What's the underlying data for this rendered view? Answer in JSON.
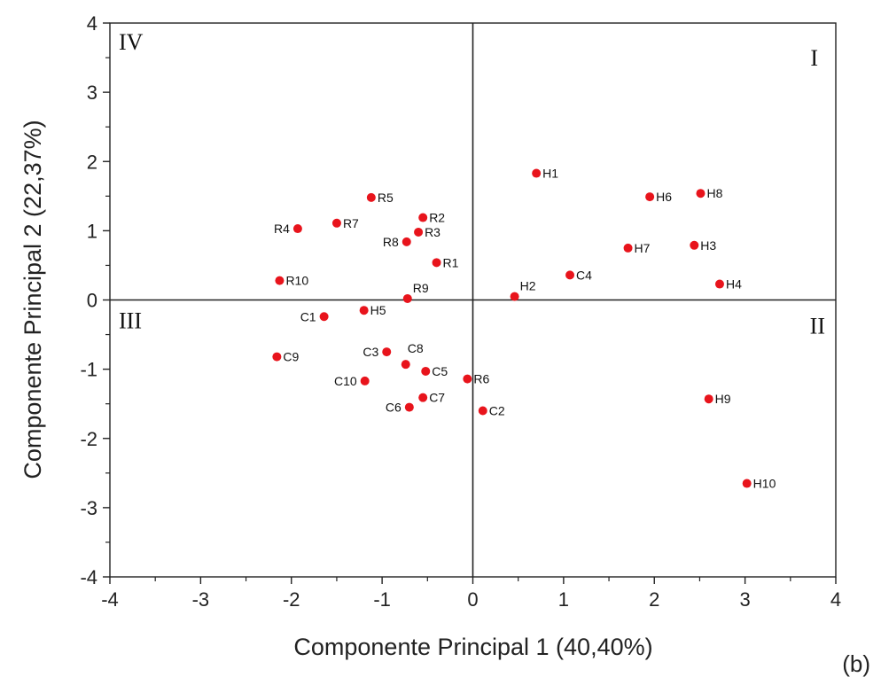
{
  "panel_tag": "(b)",
  "chart_data": {
    "type": "scatter",
    "xlabel": "Componente Principal 1 (40,40%)",
    "ylabel": "Componente Principal 2 (22,37%)",
    "xlim": [
      -4,
      4
    ],
    "ylim": [
      -4,
      4
    ],
    "xticks": [
      -4,
      -3,
      -2,
      -1,
      0,
      1,
      2,
      3,
      4
    ],
    "yticks": [
      -4,
      -3,
      -2,
      -1,
      0,
      1,
      2,
      3,
      4
    ],
    "grid": false,
    "reference_lines": {
      "x": 0,
      "y": 0
    },
    "point_color": "#e8141c",
    "quadrant_labels": [
      {
        "text": "I",
        "position": "top-right"
      },
      {
        "text": "II",
        "position": "bottom-right"
      },
      {
        "text": "III",
        "position": "bottom-left"
      },
      {
        "text": "IV",
        "position": "top-left"
      }
    ],
    "points": [
      {
        "label": "H1",
        "x": 0.7,
        "y": 1.83
      },
      {
        "label": "H2",
        "x": 0.46,
        "y": 0.05
      },
      {
        "label": "H3",
        "x": 2.44,
        "y": 0.79
      },
      {
        "label": "H4",
        "x": 2.72,
        "y": 0.23
      },
      {
        "label": "H5",
        "x": -1.2,
        "y": -0.15
      },
      {
        "label": "H6",
        "x": 1.95,
        "y": 1.49
      },
      {
        "label": "H7",
        "x": 1.71,
        "y": 0.75
      },
      {
        "label": "H8",
        "x": 2.51,
        "y": 1.54
      },
      {
        "label": "H9",
        "x": 2.6,
        "y": -1.43
      },
      {
        "label": "H10",
        "x": 3.02,
        "y": -2.65
      },
      {
        "label": "R1",
        "x": -0.4,
        "y": 0.54
      },
      {
        "label": "R2",
        "x": -0.55,
        "y": 1.19
      },
      {
        "label": "R3",
        "x": -0.6,
        "y": 0.98
      },
      {
        "label": "R4",
        "x": -1.93,
        "y": 1.03
      },
      {
        "label": "R5",
        "x": -1.12,
        "y": 1.48
      },
      {
        "label": "R6",
        "x": -0.06,
        "y": -1.14
      },
      {
        "label": "R7",
        "x": -1.5,
        "y": 1.11
      },
      {
        "label": "R8",
        "x": -0.73,
        "y": 0.84
      },
      {
        "label": "R9",
        "x": -0.72,
        "y": 0.02
      },
      {
        "label": "R10",
        "x": -2.13,
        "y": 0.28
      },
      {
        "label": "C1",
        "x": -1.64,
        "y": -0.24
      },
      {
        "label": "C2",
        "x": 0.11,
        "y": -1.6
      },
      {
        "label": "C3",
        "x": -0.95,
        "y": -0.75
      },
      {
        "label": "C4",
        "x": 1.07,
        "y": 0.36
      },
      {
        "label": "C5",
        "x": -0.52,
        "y": -1.03
      },
      {
        "label": "C6",
        "x": -0.7,
        "y": -1.55
      },
      {
        "label": "C7",
        "x": -0.55,
        "y": -1.41
      },
      {
        "label": "C8",
        "x": -0.74,
        "y": -0.93
      },
      {
        "label": "C9",
        "x": -2.16,
        "y": -0.82
      },
      {
        "label": "C10",
        "x": -1.19,
        "y": -1.17
      }
    ]
  }
}
